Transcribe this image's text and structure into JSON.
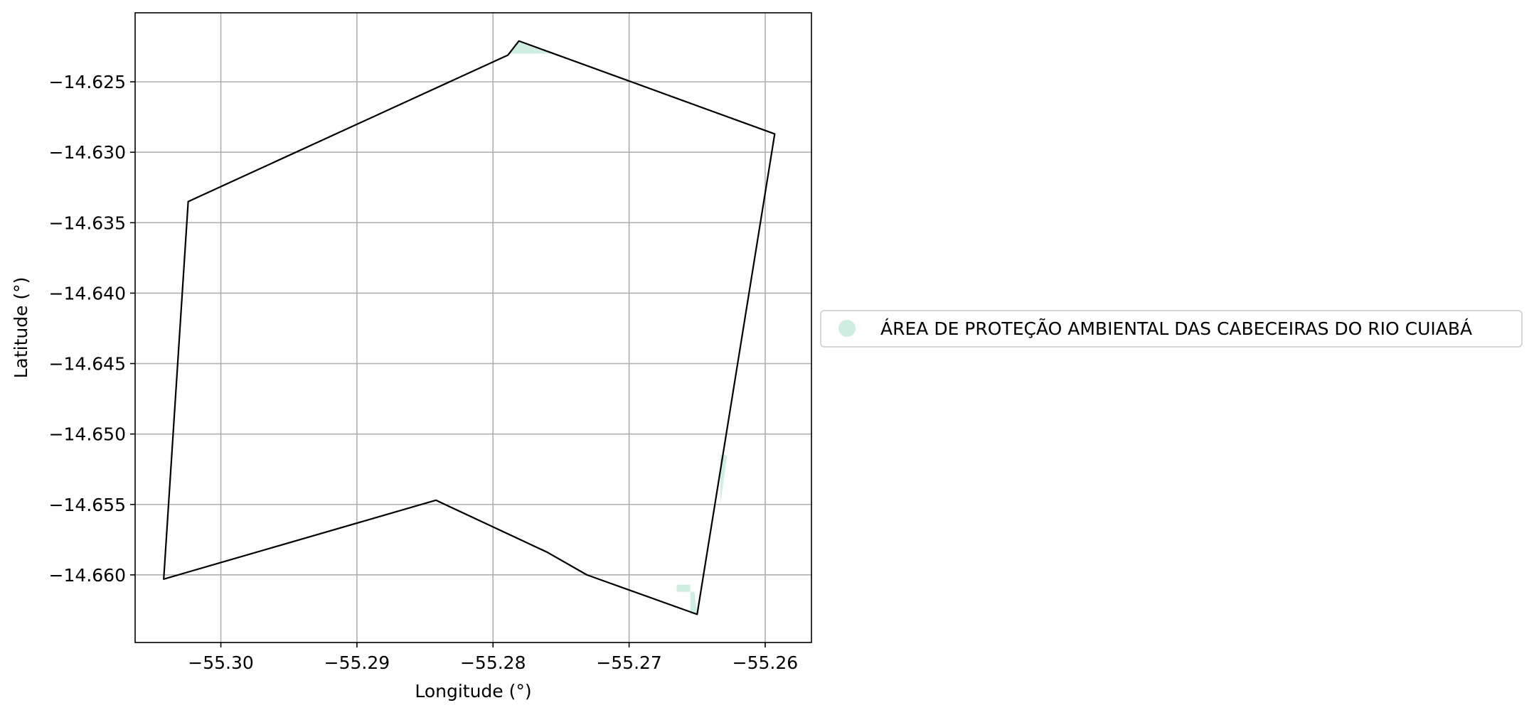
{
  "chart_data": {
    "type": "map",
    "xlabel": "Longitude (°)",
    "ylabel": "Latitude (°)",
    "xlim": [
      -55.3063,
      -55.2566
    ],
    "ylim": [
      -14.6648,
      -14.6201
    ],
    "grid": true,
    "x_ticks": [
      -55.3,
      -55.29,
      -55.28,
      -55.27,
      -55.26
    ],
    "x_tick_labels": [
      "−55.30",
      "−55.29",
      "−55.28",
      "−55.27",
      "−55.26"
    ],
    "y_ticks": [
      -14.625,
      -14.63,
      -14.635,
      -14.64,
      -14.645,
      -14.65,
      -14.655,
      -14.66
    ],
    "y_tick_labels": [
      "−14.625",
      "−14.630",
      "−14.635",
      "−14.640",
      "−14.645",
      "−14.650",
      "−14.655",
      "−14.660"
    ],
    "boundary": {
      "stroke": "#000000",
      "points": [
        [
          -55.2781,
          -14.6221
        ],
        [
          -55.2593,
          -14.6287
        ],
        [
          -55.265,
          -14.6628
        ],
        [
          -55.2731,
          -14.66
        ],
        [
          -55.276,
          -14.6584
        ],
        [
          -55.2842,
          -14.6547
        ],
        [
          -55.3042,
          -14.6603
        ],
        [
          -55.3024,
          -14.6335
        ],
        [
          -55.2789,
          -14.6231
        ]
      ]
    },
    "legend": {
      "placement": "center-right",
      "entries": [
        {
          "label": "ÁREA DE PROTEÇÃO AMBIENTAL DAS CABECEIRAS DO RIO CUIABÁ",
          "color": "#cfeee0"
        }
      ]
    },
    "protected_area_fragments": [
      {
        "name": "APA Cabeceiras do Rio Cuiabá",
        "color": "#cfeee0",
        "points": [
          [
            -55.2789,
            -14.6231
          ],
          [
            -55.2781,
            -14.6221
          ],
          [
            -55.2754,
            -14.623
          ],
          [
            -55.2789,
            -14.623
          ]
        ]
      },
      {
        "name": "APA Cabeceiras do Rio Cuiabá",
        "color": "#cfeee0",
        "points": [
          [
            -55.2633,
            -14.6515
          ],
          [
            -55.2628,
            -14.6515
          ],
          [
            -55.2633,
            -14.655
          ]
        ]
      },
      {
        "name": "APA Cabeceiras do Rio Cuiabá",
        "color": "#cfeee0",
        "points": [
          [
            -55.2665,
            -14.6607
          ],
          [
            -55.2655,
            -14.6607
          ],
          [
            -55.2655,
            -14.6612
          ],
          [
            -55.2665,
            -14.6612
          ]
        ]
      },
      {
        "name": "APA Cabeceiras do Rio Cuiabá",
        "color": "#cfeee0",
        "points": [
          [
            -55.2655,
            -14.6612
          ],
          [
            -55.2652,
            -14.6612
          ],
          [
            -55.265,
            -14.6628
          ],
          [
            -55.2655,
            -14.6628
          ]
        ]
      }
    ]
  }
}
